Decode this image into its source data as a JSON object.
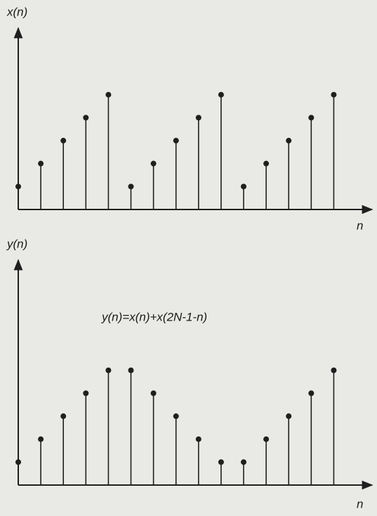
{
  "chart_data": [
    {
      "type": "stem",
      "y_label": "x(n)",
      "x_label": "n",
      "color": "#1f1f1f",
      "x": [
        0,
        1,
        2,
        3,
        4,
        5,
        6,
        7,
        8,
        9,
        10,
        11,
        12,
        13,
        14
      ],
      "values": [
        1,
        2,
        3,
        4,
        5,
        1,
        2,
        3,
        4,
        5,
        1,
        2,
        3,
        4,
        5
      ],
      "xlim": [
        0,
        15.7
      ],
      "ylim": [
        0,
        7.9
      ]
    },
    {
      "type": "stem",
      "y_label": "y(n)",
      "x_label": "n",
      "annotation": "y(n)=x(n)+x(2N-1-n)",
      "color": "#1f1f1f",
      "x": [
        0,
        1,
        2,
        3,
        4,
        5,
        6,
        7,
        8,
        9,
        10,
        11,
        12,
        13,
        14
      ],
      "values": [
        1,
        2,
        3,
        4,
        5,
        5,
        4,
        3,
        2,
        1,
        1,
        2,
        3,
        4,
        5
      ],
      "xlim": [
        0,
        15.7
      ],
      "ylim": [
        0,
        9.8
      ]
    }
  ]
}
